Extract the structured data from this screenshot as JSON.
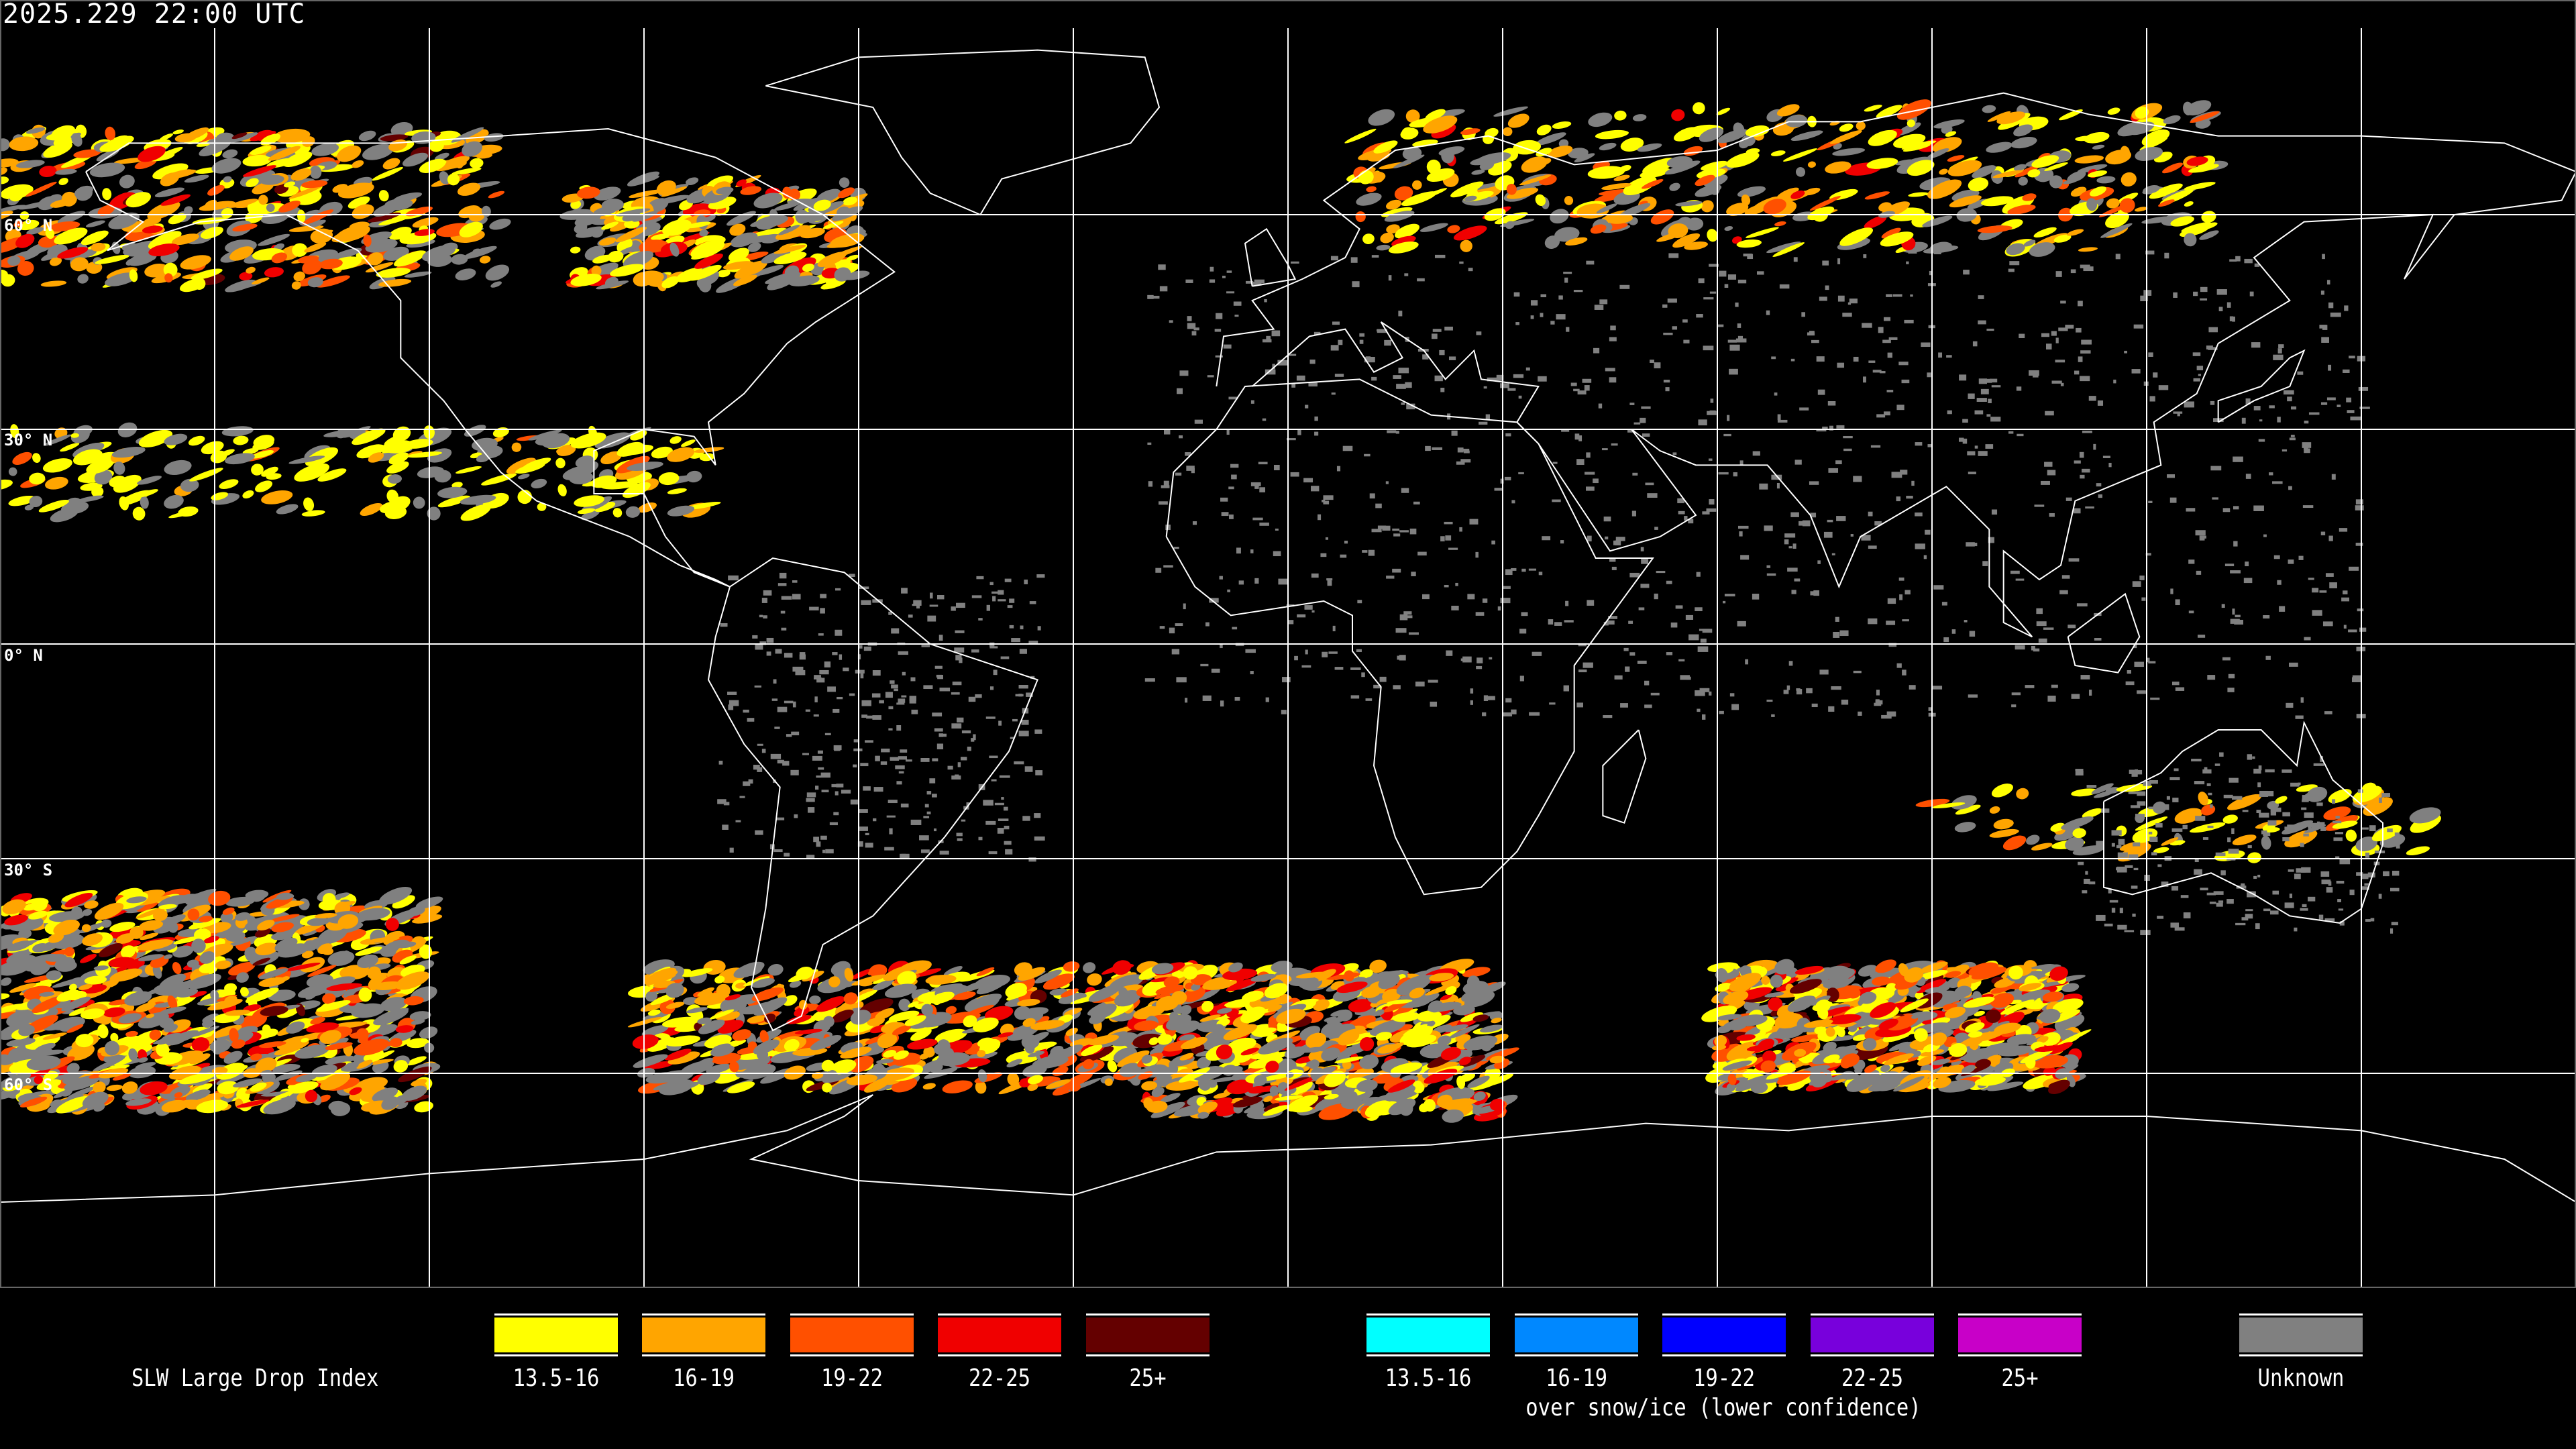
{
  "header": {
    "timestamp": "2025.229 22:00 UTC"
  },
  "map": {
    "projection": "equirectangular",
    "grid_spacing_degrees": 30,
    "latitude_labels": [
      "60° N",
      "30° N",
      "0° N",
      "30° S",
      "60° S"
    ],
    "coastline_color": "#ffffff",
    "gridline_color": "#ffffff"
  },
  "legend": {
    "title": "SLW Large Drop Index",
    "primary": [
      {
        "label": "13.5-16",
        "color": "#ffff00"
      },
      {
        "label": "16-19",
        "color": "#ffa500"
      },
      {
        "label": "19-22",
        "color": "#ff5000"
      },
      {
        "label": "22-25",
        "color": "#f00000"
      },
      {
        "label": "25+",
        "color": "#640000"
      }
    ],
    "snow_ice": [
      {
        "label": "13.5-16",
        "color": "#00ffff"
      },
      {
        "label": "16-19",
        "color": "#0088ff"
      },
      {
        "label": "19-22",
        "color": "#0000ff"
      },
      {
        "label": "22-25",
        "color": "#7800dc"
      },
      {
        "label": "25+",
        "color": "#c800c8"
      }
    ],
    "snow_ice_caption": "over snow/ice (lower confidence)",
    "unknown": {
      "label": "Unknown",
      "color": "#808080"
    }
  }
}
